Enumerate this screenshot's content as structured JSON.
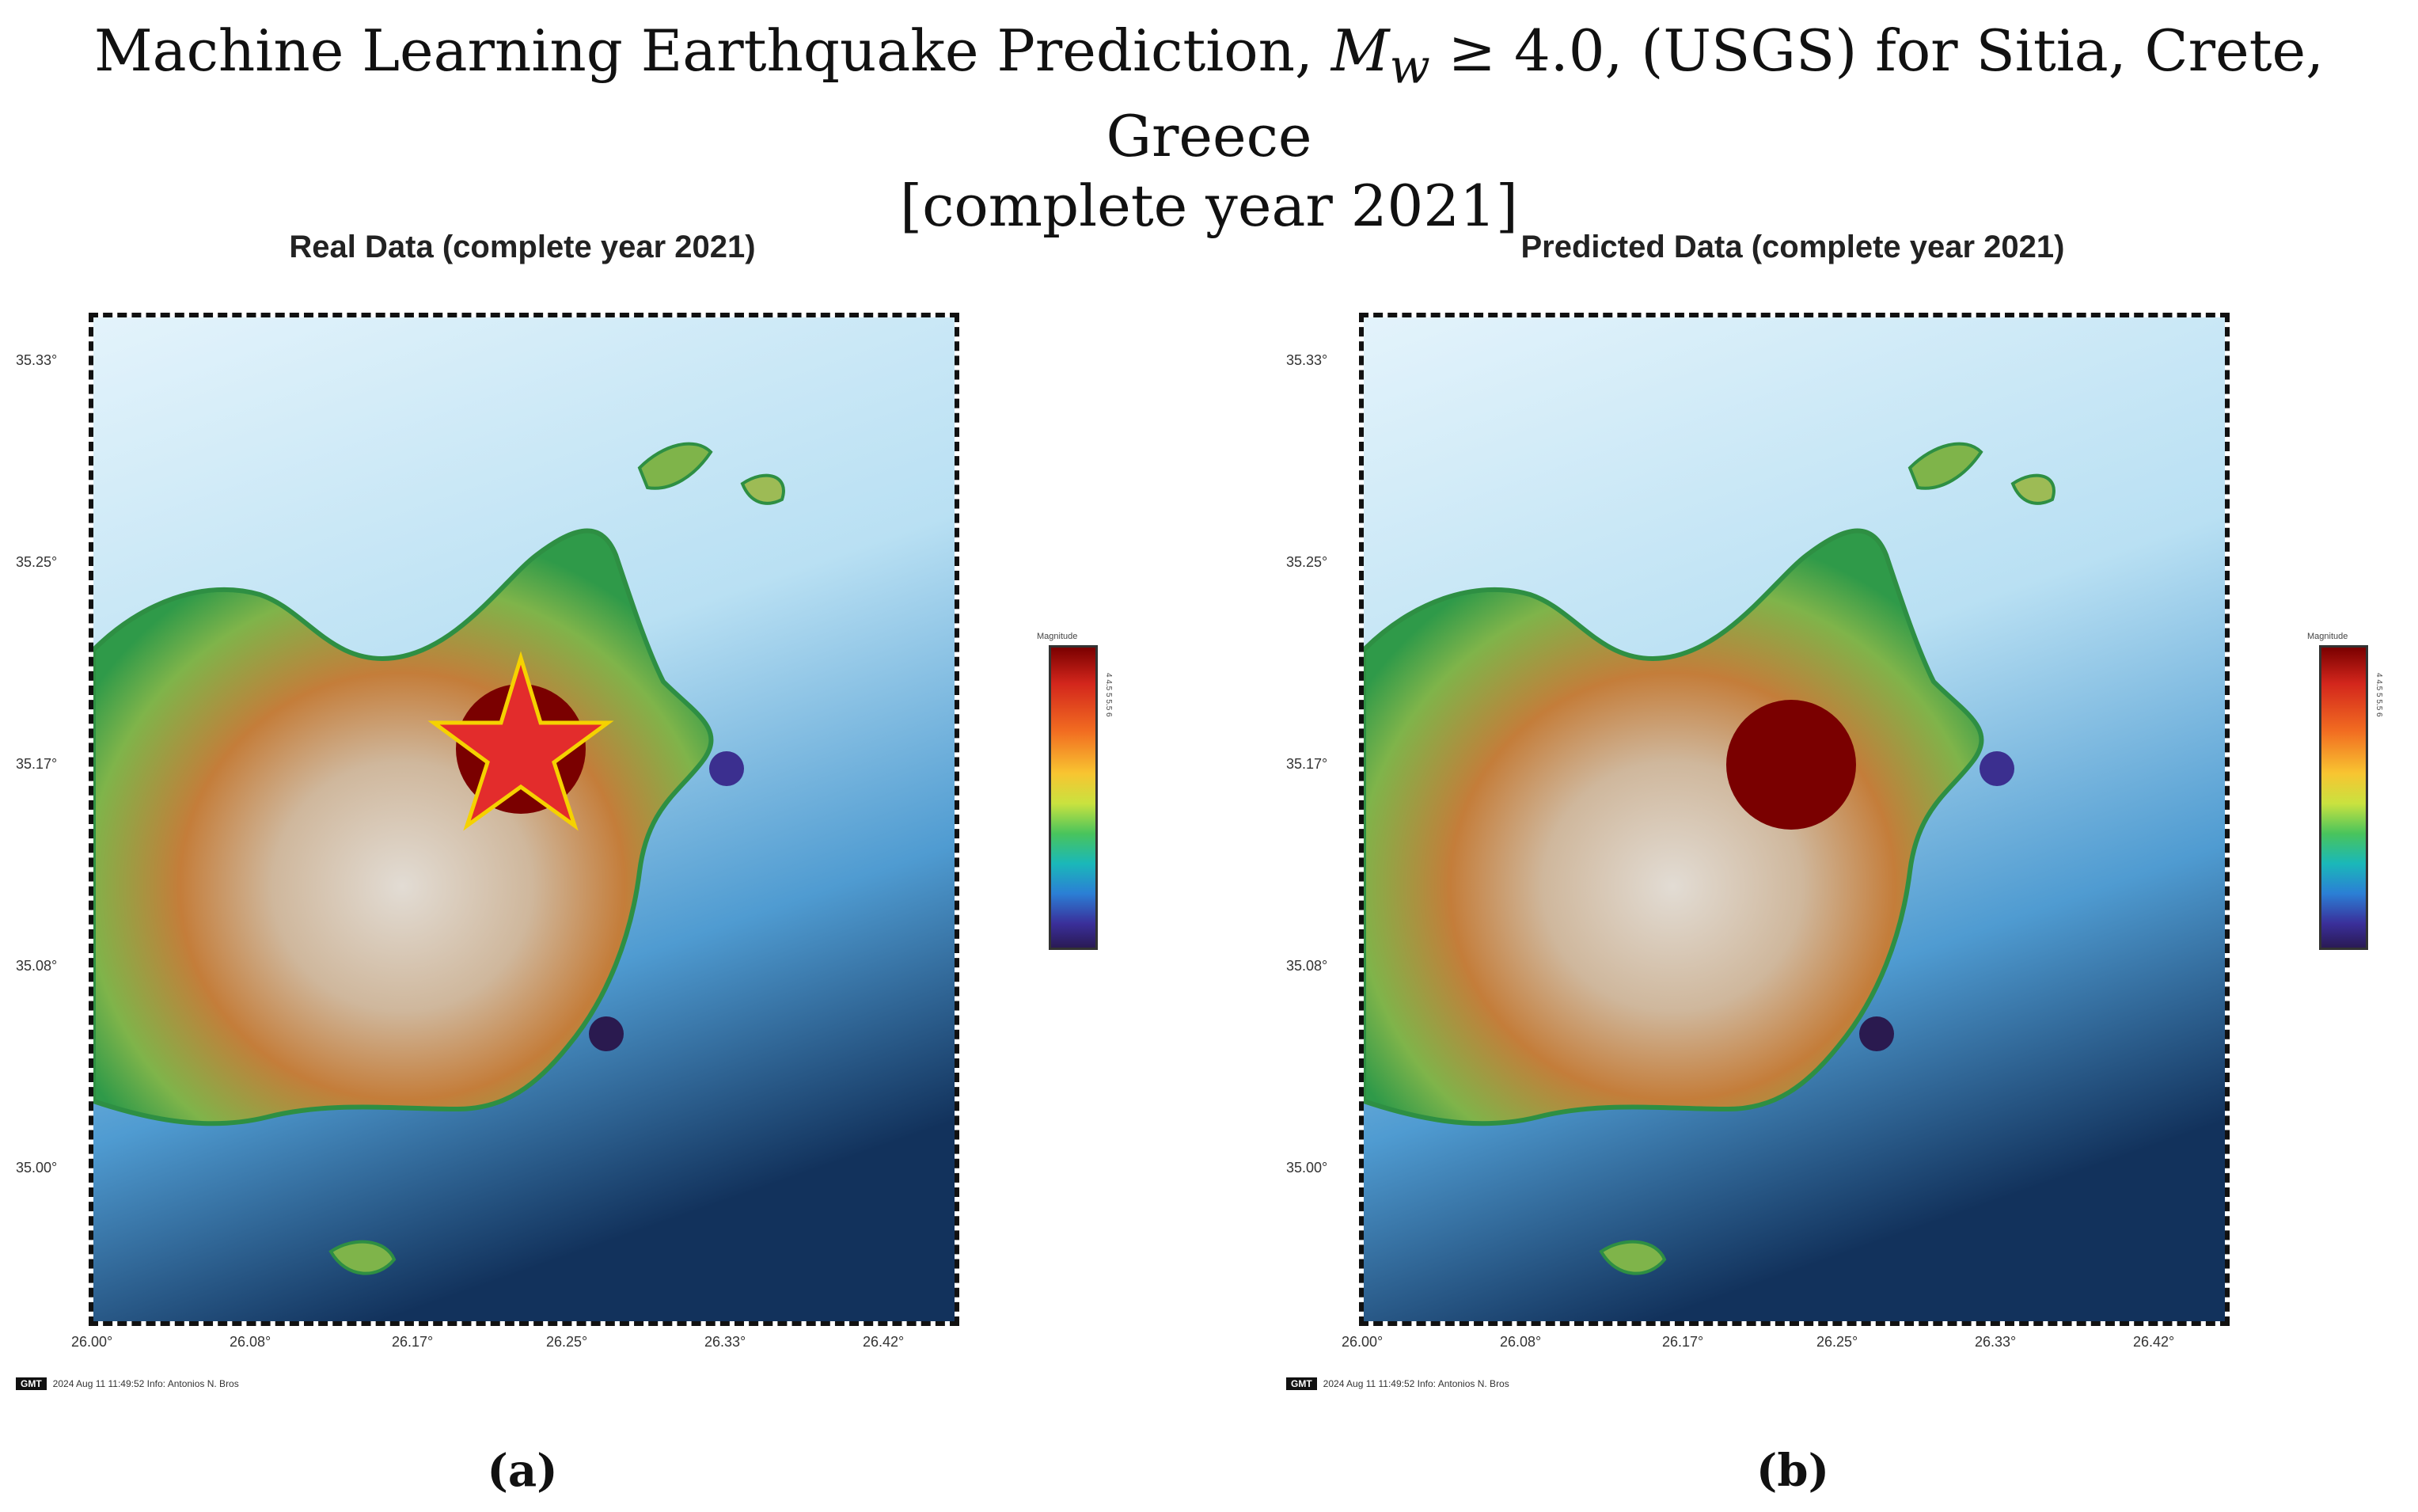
{
  "title": {
    "line1_prefix": "Machine Learning Earthquake Prediction, ",
    "mw_symbol": "M",
    "mw_sub": "w",
    "line1_suffix": " ≥ 4.0, (USGS) for Sitia, Crete, Greece",
    "line2": "[complete year 2021]"
  },
  "panels": [
    {
      "id": "a",
      "title": "Real Data (complete year 2021)",
      "caption": "(a)",
      "gmt_badge": "GMT",
      "gmt_text": "2024 Aug 11 11:49:52   Info: Antonios N. Bros"
    },
    {
      "id": "b",
      "title": "Predicted Data (complete year 2021)",
      "caption": "(b)",
      "gmt_badge": "GMT",
      "gmt_text": "2024 Aug 11 11:49:52   Info: Antonios N. Bros"
    }
  ],
  "map": {
    "lat_ticks": [
      "35.33°",
      "35.25°",
      "35.17°",
      "35.08°",
      "35.00°"
    ],
    "lon_ticks": [
      "26.00°",
      "26.08°",
      "26.17°",
      "26.25°",
      "26.33°",
      "26.42°"
    ],
    "colorbar_label": "Magnitude",
    "colorbar_ticks": "4  4.5  5  5.5  6"
  },
  "events": {
    "real": [
      {
        "lon": 26.2,
        "lat": 35.18,
        "magnitude": "high",
        "color": "#7a0000",
        "marker": "circle-with-star"
      },
      {
        "lon": 26.31,
        "lat": 35.17,
        "magnitude": "low",
        "color": "#3b2f8f",
        "marker": "circle"
      },
      {
        "lon": 26.26,
        "lat": 35.05,
        "magnitude": "low",
        "color": "#2a1a4f",
        "marker": "circle"
      }
    ],
    "predicted": [
      {
        "lon": 26.2,
        "lat": 35.17,
        "magnitude": "high",
        "color": "#7a0000",
        "marker": "circle"
      },
      {
        "lon": 26.31,
        "lat": 35.17,
        "magnitude": "low",
        "color": "#3b2f8f",
        "marker": "circle"
      },
      {
        "lon": 26.26,
        "lat": 35.05,
        "magnitude": "low",
        "color": "#2a1a4f",
        "marker": "circle"
      }
    ]
  },
  "colors": {
    "land_low": "#3fa34d",
    "land_mid": "#c9873e",
    "land_high": "#d9d2c9",
    "sea_shallow": "#cfeaf7",
    "sea_mid": "#6fb7df",
    "sea_deep": "#15345f",
    "star_fill": "#e32c2c",
    "star_stroke": "#f5d200"
  }
}
